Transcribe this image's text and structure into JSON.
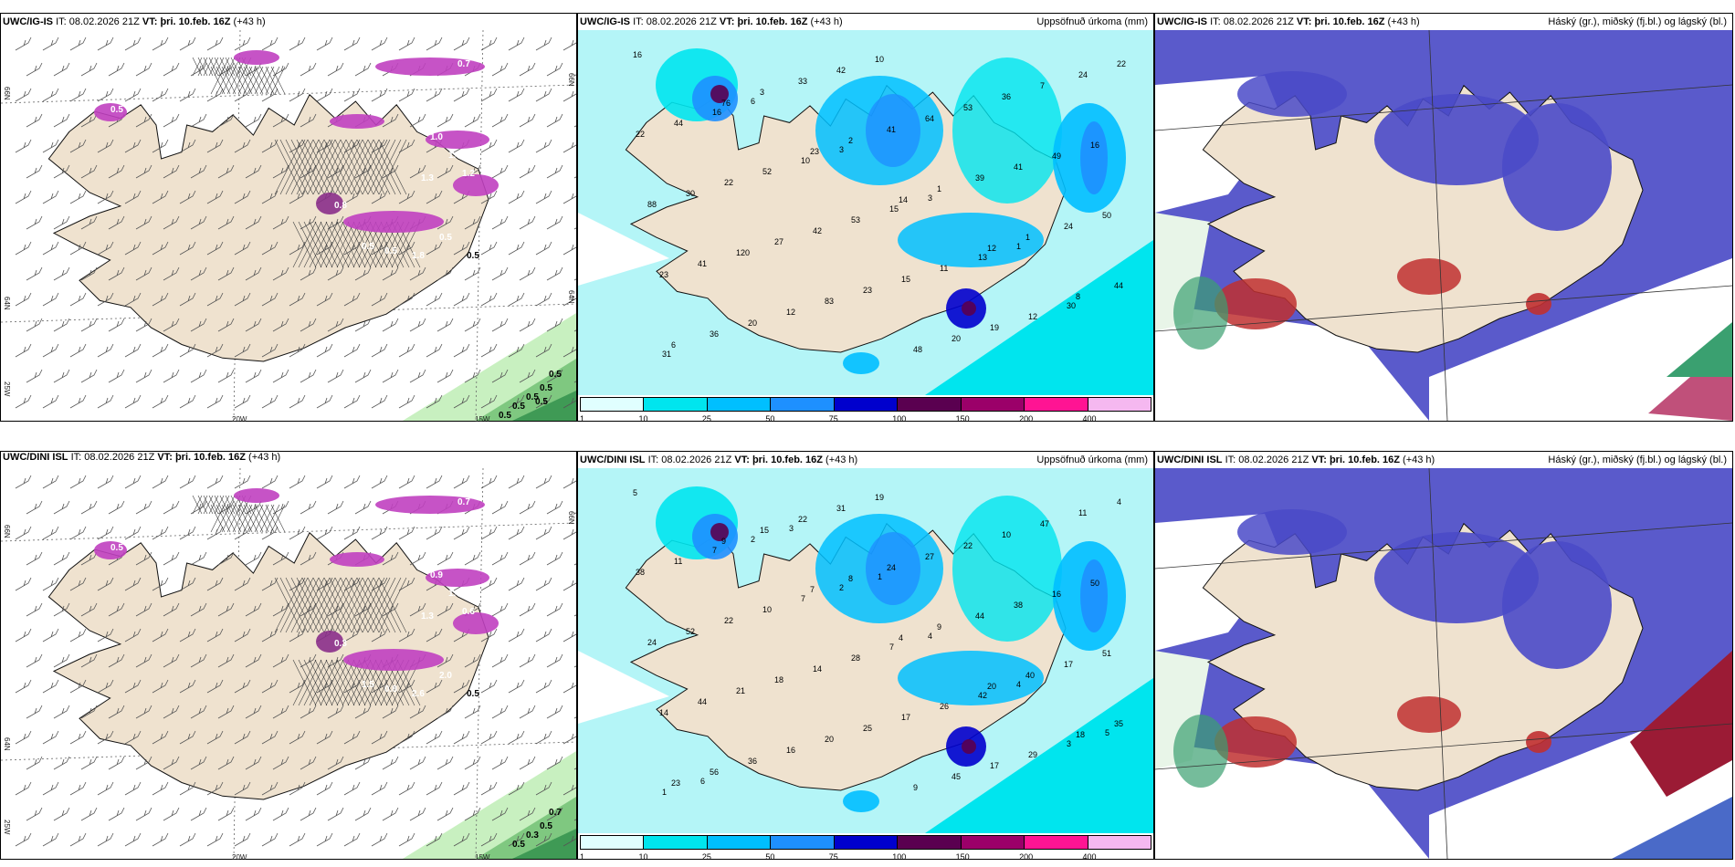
{
  "panels": [
    {
      "id": "p1",
      "model": "UWC/IG-IS",
      "it_label": "IT:",
      "it": "08.02.2026 21Z",
      "vt_label": "VT:",
      "vt": "þri. 10.feb. 16Z",
      "lead": "(+43 h)",
      "right": "",
      "kind": "wind"
    },
    {
      "id": "p2",
      "model": "UWC/IG-IS",
      "it_label": "IT:",
      "it": "08.02.2026 21Z",
      "vt_label": "VT:",
      "vt": "þri. 10.feb. 16Z",
      "lead": "(+43 h)",
      "right": "Uppsöfnuð úrkoma (mm)",
      "kind": "precip"
    },
    {
      "id": "p3",
      "model": "UWC/IG-IS",
      "it_label": "IT:",
      "it": "08.02.2026 21Z",
      "vt_label": "VT:",
      "vt": "þri. 10.feb. 16Z",
      "lead": "(+43 h)",
      "right": "Háský (gr.), miðský (fj.bl.) og lágský (bl.)",
      "kind": "cloud"
    },
    {
      "id": "p4",
      "model": "UWC/DINI ISL",
      "it_label": "IT:",
      "it": "08.02.2026 21Z",
      "vt_label": "VT:",
      "vt": "þri. 10.feb. 16Z",
      "lead": "(+43 h)",
      "right": "",
      "kind": "wind"
    },
    {
      "id": "p5",
      "model": "UWC/DINI ISL",
      "it_label": "IT:",
      "it": "08.02.2026 21Z",
      "vt_label": "VT:",
      "vt": "þri. 10.feb. 16Z",
      "lead": "(+43 h)",
      "right": "Uppsöfnuð úrkoma (mm)",
      "kind": "precip"
    },
    {
      "id": "p6",
      "model": "UWC/DINI ISL",
      "it_label": "IT:",
      "it": "08.02.2026 21Z",
      "vt_label": "VT:",
      "vt": "þri. 10.feb. 16Z",
      "lead": "(+43 h)",
      "right": "Háský (gr.), miðský (fj.bl.) og lágský (bl.)",
      "kind": "cloud"
    }
  ],
  "grid_labels": {
    "lat_top": "66N",
    "lat_bottom": "64N",
    "lat_bottom2": "63N",
    "lon_left": "25W",
    "lon_mid": "20W",
    "lon_right": "15W"
  },
  "colorbar": {
    "labels": [
      "1",
      "10",
      "25",
      "50",
      "75",
      "100",
      "150",
      "200",
      "400"
    ],
    "colors": [
      "#e0ffff",
      "#00e5ee",
      "#00bfff",
      "#1e90ff",
      "#0000cd",
      "#5a0050",
      "#9b0069",
      "#ff1493",
      "#f5b8f0"
    ]
  },
  "colors": {
    "land": "#efe2cf",
    "sea_precip": "#b4f5f7",
    "green": "#2e8b57",
    "magenta": "#c040c0",
    "cloud_blue": "#4a4ac8",
    "cloud_red": "#c03030"
  },
  "precip_labels_top": [
    "16",
    "76",
    "23",
    "14",
    "12",
    "8",
    "6",
    "3",
    "2",
    "1",
    "1",
    "44",
    "36",
    "33",
    "41",
    "39",
    "24",
    "23",
    "20",
    "42",
    "64",
    "41",
    "50",
    "41",
    "12",
    "10",
    "53",
    "49",
    "88",
    "120",
    "83",
    "48",
    "36",
    "16",
    "30",
    "27",
    "23",
    "20",
    "7",
    "22",
    "22",
    "42",
    "15",
    "19",
    "24",
    "44",
    "52",
    "53",
    "11",
    "12",
    "22",
    "16",
    "10",
    "15",
    "13",
    "30",
    "31",
    "6",
    "3",
    "3",
    "1"
  ],
  "precip_labels_bottom": [
    "5",
    "9",
    "7",
    "4",
    "20",
    "18",
    "23",
    "15",
    "8",
    "9",
    "40",
    "35",
    "56",
    "22",
    "24",
    "44",
    "17",
    "14",
    "36",
    "31",
    "27",
    "38",
    "51",
    "44",
    "16",
    "19",
    "22",
    "16",
    "24",
    "21",
    "20",
    "9",
    "10",
    "50",
    "52",
    "18",
    "25",
    "45",
    "47",
    "38",
    "22",
    "14",
    "17",
    "17",
    "11",
    "11",
    "10",
    "28",
    "26",
    "29",
    "4",
    "7",
    "7",
    "7",
    "42",
    "3",
    "1",
    "2",
    "2",
    "4",
    "4",
    "5",
    "6",
    "3",
    "1"
  ],
  "wind_labels_top": [
    "0.5",
    "0.8",
    "1.3",
    "0.7",
    "1.0",
    "1.2",
    "1.3",
    "1.0",
    "0.5",
    "0.5",
    "1.8",
    "0.5",
    "0.5",
    "0.5",
    "0.5",
    "0.5",
    "0.5",
    "0.5",
    "0.5"
  ],
  "wind_labels_bottom": [
    "0.5",
    "0.3",
    "1.3",
    "0.7",
    "0.9",
    "0.6",
    "1.3",
    "1.4",
    "1.5",
    "0.8",
    "2.6",
    "2.0",
    "0.5",
    "0.7",
    "0.5",
    "0.3",
    "0.5"
  ]
}
